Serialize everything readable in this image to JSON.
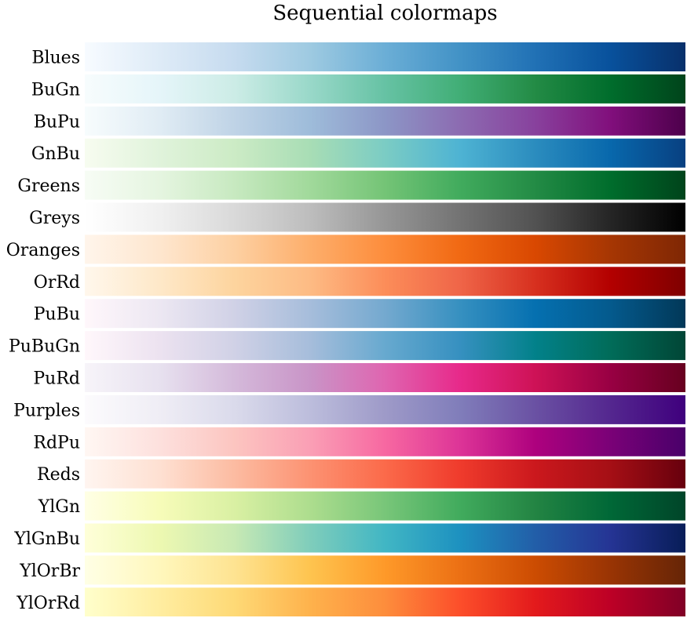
{
  "title": "Sequential colormaps",
  "chart_data": {
    "type": "colormap-gradients",
    "title": "Sequential colormaps",
    "colormaps": [
      {
        "name": "Blues",
        "colors": [
          "#f7fbff",
          "#deebf7",
          "#c6dbef",
          "#9ecae1",
          "#6baed6",
          "#4292c6",
          "#2171b5",
          "#08519c",
          "#08306b"
        ]
      },
      {
        "name": "BuGn",
        "colors": [
          "#f7fcfd",
          "#e5f5f9",
          "#ccece6",
          "#99d8c9",
          "#66c2a4",
          "#41ae76",
          "#238b45",
          "#006d2c",
          "#00441b"
        ]
      },
      {
        "name": "BuPu",
        "colors": [
          "#f7fcfd",
          "#e0ecf4",
          "#bfd3e6",
          "#9ebcda",
          "#8c96c6",
          "#8c6bb1",
          "#88419d",
          "#810f7c",
          "#4d004b"
        ]
      },
      {
        "name": "GnBu",
        "colors": [
          "#f7fcf0",
          "#e0f3db",
          "#ccebc5",
          "#a8ddb5",
          "#7bccc4",
          "#4eb3d3",
          "#2b8cbe",
          "#0868ac",
          "#084081"
        ]
      },
      {
        "name": "Greens",
        "colors": [
          "#f7fcf5",
          "#e5f5e0",
          "#c7e9c0",
          "#a1d99b",
          "#74c476",
          "#41ab5d",
          "#238b45",
          "#006d2c",
          "#00441b"
        ]
      },
      {
        "name": "Greys",
        "colors": [
          "#ffffff",
          "#f0f0f0",
          "#d9d9d9",
          "#bdbdbd",
          "#969696",
          "#737373",
          "#525252",
          "#252525",
          "#000000"
        ]
      },
      {
        "name": "Oranges",
        "colors": [
          "#fff5eb",
          "#fee6ce",
          "#fdd0a2",
          "#fdae6b",
          "#fd8d3c",
          "#f16913",
          "#d94801",
          "#a63603",
          "#7f2704"
        ]
      },
      {
        "name": "OrRd",
        "colors": [
          "#fff7ec",
          "#fee8c8",
          "#fdd49e",
          "#fdbb84",
          "#fc8d59",
          "#ef6548",
          "#d7301f",
          "#b30000",
          "#7f0000"
        ]
      },
      {
        "name": "PuBu",
        "colors": [
          "#fff7fb",
          "#ece7f2",
          "#d0d1e6",
          "#a6bddb",
          "#74a9cf",
          "#3690c0",
          "#0570b0",
          "#045a8d",
          "#023858"
        ]
      },
      {
        "name": "PuBuGn",
        "colors": [
          "#fff7fb",
          "#ece2f0",
          "#d0d1e6",
          "#a6bddb",
          "#67a9cf",
          "#3690c0",
          "#02818a",
          "#016c59",
          "#014636"
        ]
      },
      {
        "name": "PuRd",
        "colors": [
          "#f7f4f9",
          "#e7e1ef",
          "#d4b9da",
          "#c994c7",
          "#df65b0",
          "#e7298a",
          "#ce1256",
          "#980043",
          "#67001f"
        ]
      },
      {
        "name": "Purples",
        "colors": [
          "#fcfbfd",
          "#efedf5",
          "#dadaeb",
          "#bcbddc",
          "#9e9ac8",
          "#807dba",
          "#6a51a3",
          "#54278f",
          "#3f007d"
        ]
      },
      {
        "name": "RdPu",
        "colors": [
          "#fff7f3",
          "#fde0dd",
          "#fcc5c0",
          "#fa9fb5",
          "#f768a1",
          "#dd3497",
          "#ae017e",
          "#7a0177",
          "#49006a"
        ]
      },
      {
        "name": "Reds",
        "colors": [
          "#fff5f0",
          "#fee0d2",
          "#fcbba1",
          "#fc9272",
          "#fb6a4a",
          "#ef3b2c",
          "#cb181d",
          "#a50f15",
          "#67000d"
        ]
      },
      {
        "name": "YlGn",
        "colors": [
          "#ffffe5",
          "#f7fcb9",
          "#d9f0a3",
          "#addd8e",
          "#78c679",
          "#41ab5d",
          "#238443",
          "#006837",
          "#004529"
        ]
      },
      {
        "name": "YlGnBu",
        "colors": [
          "#ffffd9",
          "#edf8b1",
          "#c7e9b4",
          "#7fcdbb",
          "#41b6c4",
          "#1d91c0",
          "#225ea8",
          "#253494",
          "#081d58"
        ]
      },
      {
        "name": "YlOrBr",
        "colors": [
          "#ffffe5",
          "#fff7bc",
          "#fee391",
          "#fec44f",
          "#fe9929",
          "#ec7014",
          "#cc4c02",
          "#993404",
          "#662506"
        ]
      },
      {
        "name": "YlOrRd",
        "colors": [
          "#ffffcc",
          "#ffeda0",
          "#fed976",
          "#feb24c",
          "#fd8d3c",
          "#fc4e2a",
          "#e31a1c",
          "#bd0026",
          "#800026"
        ]
      }
    ]
  }
}
